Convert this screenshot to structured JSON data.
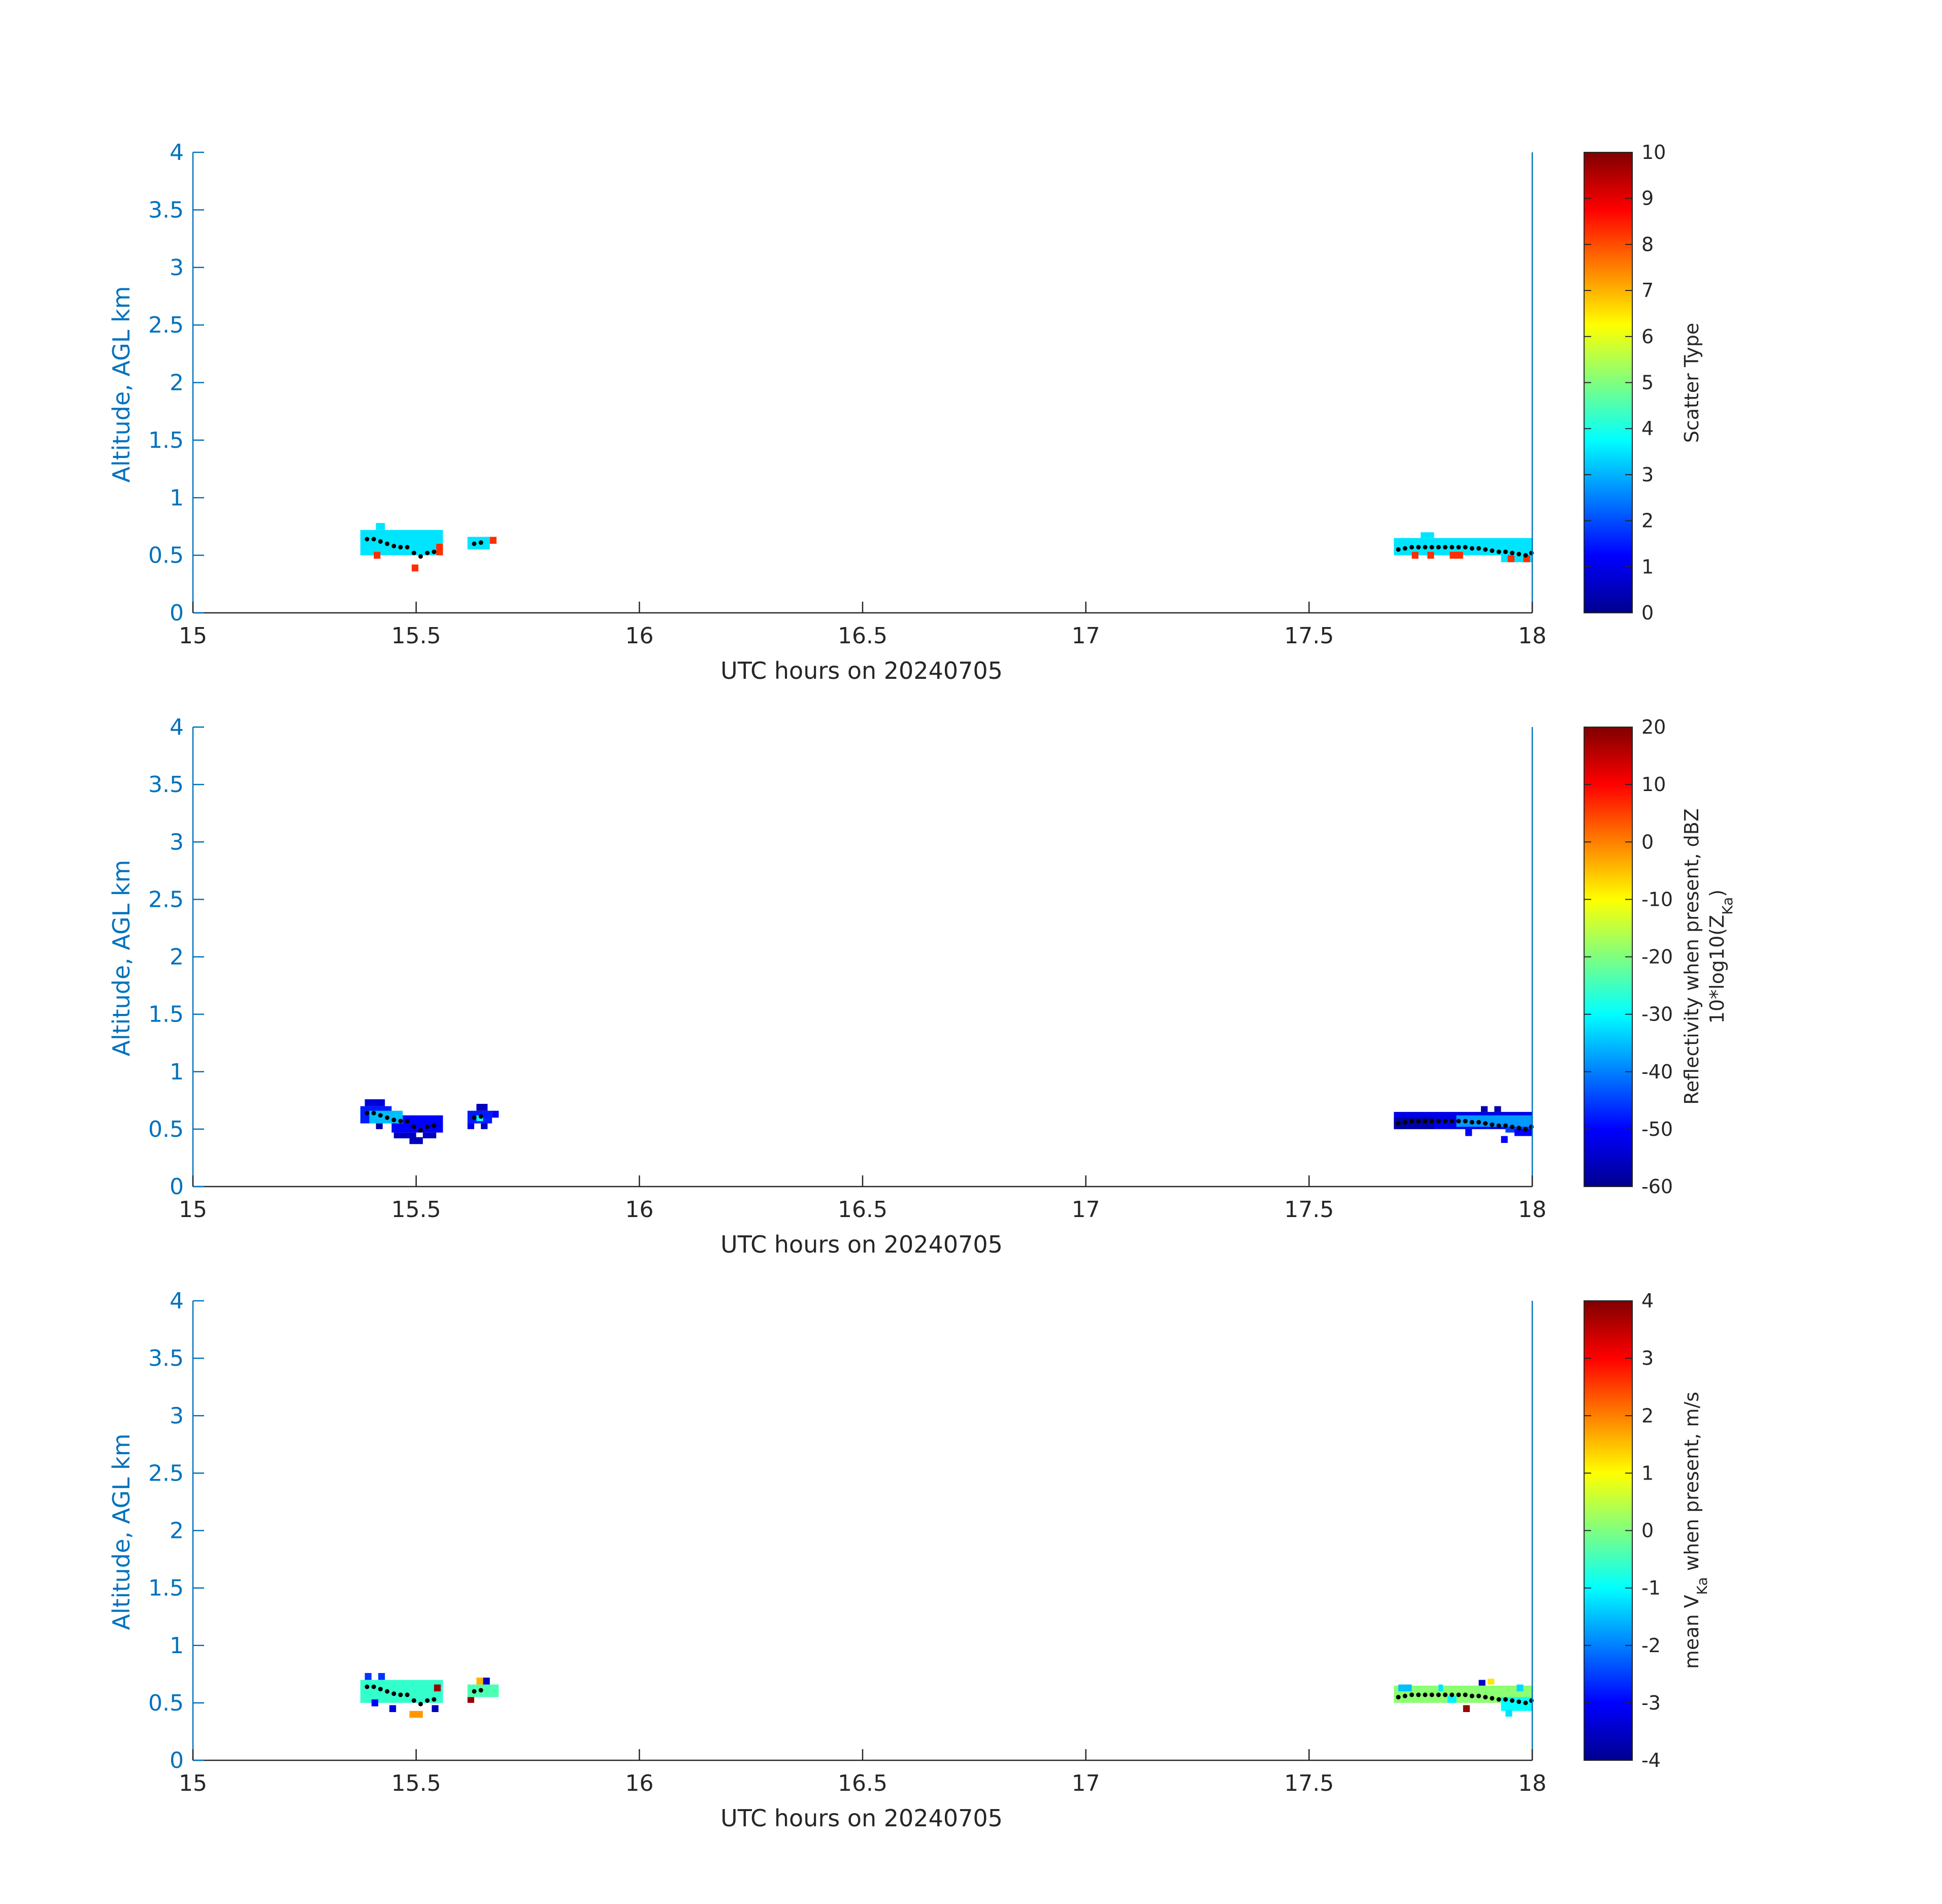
{
  "chart_data": [
    {
      "type": "heatmap",
      "xlabel": "UTC hours on 20240705",
      "ylabel": "Altitude, AGL km",
      "xlim": [
        15,
        18
      ],
      "ylim": [
        0,
        4
      ],
      "xticks": [
        "15",
        "15.5",
        "16",
        "16.5",
        "17",
        "17.5",
        "18"
      ],
      "yticks": [
        "0",
        "0.5",
        "1",
        "1.5",
        "2",
        "2.5",
        "3",
        "3.5",
        "4"
      ],
      "colorbar": {
        "label": "Scatter Type",
        "range": [
          0,
          10
        ],
        "ticks": [
          "0",
          "1",
          "2",
          "3",
          "4",
          "5",
          "6",
          "7",
          "8",
          "9",
          "10"
        ]
      },
      "cells": [
        {
          "x0": 15.375,
          "x1": 15.56,
          "y0": 0.5,
          "y1": 0.72,
          "value": 3.5
        },
        {
          "x0": 15.41,
          "x1": 15.43,
          "y0": 0.72,
          "y1": 0.78,
          "value": 3.5
        },
        {
          "x0": 15.615,
          "x1": 15.665,
          "y0": 0.55,
          "y1": 0.66,
          "value": 3.5
        },
        {
          "x0": 15.405,
          "x1": 15.42,
          "y0": 0.47,
          "y1": 0.53,
          "value": 8.3
        },
        {
          "x0": 15.49,
          "x1": 15.505,
          "y0": 0.36,
          "y1": 0.42,
          "value": 8.3
        },
        {
          "x0": 15.545,
          "x1": 15.56,
          "y0": 0.5,
          "y1": 0.6,
          "value": 8.3
        },
        {
          "x0": 15.665,
          "x1": 15.68,
          "y0": 0.6,
          "y1": 0.66,
          "value": 8.3
        },
        {
          "x0": 17.69,
          "x1": 18.0,
          "y0": 0.5,
          "y1": 0.65,
          "value": 3.5
        },
        {
          "x0": 17.75,
          "x1": 17.78,
          "y0": 0.65,
          "y1": 0.7,
          "value": 3.5
        },
        {
          "x0": 17.93,
          "x1": 18.0,
          "y0": 0.44,
          "y1": 0.5,
          "value": 3.5
        },
        {
          "x0": 17.73,
          "x1": 17.745,
          "y0": 0.47,
          "y1": 0.53,
          "value": 8.3
        },
        {
          "x0": 17.765,
          "x1": 17.78,
          "y0": 0.47,
          "y1": 0.53,
          "value": 8.3
        },
        {
          "x0": 17.815,
          "x1": 17.845,
          "y0": 0.47,
          "y1": 0.53,
          "value": 8.3
        },
        {
          "x0": 17.945,
          "x1": 17.96,
          "y0": 0.44,
          "y1": 0.5,
          "value": 8.3
        },
        {
          "x0": 17.98,
          "x1": 17.995,
          "y0": 0.44,
          "y1": 0.5,
          "value": 8.3
        }
      ],
      "dots": [
        {
          "x": 15.39,
          "y": 0.64
        },
        {
          "x": 15.405,
          "y": 0.64
        },
        {
          "x": 15.42,
          "y": 0.62
        },
        {
          "x": 15.435,
          "y": 0.6
        },
        {
          "x": 15.45,
          "y": 0.58
        },
        {
          "x": 15.465,
          "y": 0.57
        },
        {
          "x": 15.48,
          "y": 0.57
        },
        {
          "x": 15.495,
          "y": 0.52
        },
        {
          "x": 15.51,
          "y": 0.49
        },
        {
          "x": 15.525,
          "y": 0.52
        },
        {
          "x": 15.54,
          "y": 0.53
        },
        {
          "x": 15.63,
          "y": 0.6
        },
        {
          "x": 15.645,
          "y": 0.61
        },
        {
          "x": 17.7,
          "y": 0.55
        },
        {
          "x": 17.715,
          "y": 0.56
        },
        {
          "x": 17.73,
          "y": 0.57
        },
        {
          "x": 17.745,
          "y": 0.57
        },
        {
          "x": 17.76,
          "y": 0.57
        },
        {
          "x": 17.775,
          "y": 0.57
        },
        {
          "x": 17.79,
          "y": 0.57
        },
        {
          "x": 17.805,
          "y": 0.57
        },
        {
          "x": 17.82,
          "y": 0.57
        },
        {
          "x": 17.835,
          "y": 0.57
        },
        {
          "x": 17.85,
          "y": 0.57
        },
        {
          "x": 17.865,
          "y": 0.56
        },
        {
          "x": 17.88,
          "y": 0.56
        },
        {
          "x": 17.895,
          "y": 0.55
        },
        {
          "x": 17.91,
          "y": 0.54
        },
        {
          "x": 17.925,
          "y": 0.53
        },
        {
          "x": 17.94,
          "y": 0.53
        },
        {
          "x": 17.955,
          "y": 0.52
        },
        {
          "x": 17.97,
          "y": 0.51
        },
        {
          "x": 17.985,
          "y": 0.5
        },
        {
          "x": 17.998,
          "y": 0.52
        }
      ]
    },
    {
      "type": "heatmap",
      "xlabel": "UTC hours on 20240705",
      "ylabel": "Altitude, AGL km",
      "xlim": [
        15,
        18
      ],
      "ylim": [
        0,
        4
      ],
      "xticks": [
        "15",
        "15.5",
        "16",
        "16.5",
        "17",
        "17.5",
        "18"
      ],
      "yticks": [
        "0",
        "0.5",
        "1",
        "1.5",
        "2",
        "2.5",
        "3",
        "3.5",
        "4"
      ],
      "colorbar": {
        "label_line1": "Reflectivity when present, dBZ",
        "label_line2_prefix": "10*log10(Z",
        "label_line2_sub": "Ka",
        "label_line2_suffix": ")",
        "range": [
          -60,
          20
        ],
        "ticks": [
          "-60",
          "-50",
          "-40",
          "-30",
          "-20",
          "-10",
          "0",
          "10",
          "20"
        ]
      },
      "cells": [
        {
          "x0": 15.375,
          "x1": 15.445,
          "y0": 0.55,
          "y1": 0.7,
          "value": -48
        },
        {
          "x0": 15.385,
          "x1": 15.43,
          "y0": 0.7,
          "y1": 0.76,
          "value": -53
        },
        {
          "x0": 15.445,
          "x1": 15.56,
          "y0": 0.47,
          "y1": 0.62,
          "value": -50
        },
        {
          "x0": 15.45,
          "x1": 15.5,
          "y0": 0.42,
          "y1": 0.47,
          "value": -55
        },
        {
          "x0": 15.485,
          "x1": 15.515,
          "y0": 0.37,
          "y1": 0.43,
          "value": -55
        },
        {
          "x0": 15.515,
          "x1": 15.545,
          "y0": 0.42,
          "y1": 0.47,
          "value": -55
        },
        {
          "x0": 15.395,
          "x1": 15.47,
          "y0": 0.55,
          "y1": 0.66,
          "value": -35
        },
        {
          "x0": 15.41,
          "x1": 15.425,
          "y0": 0.5,
          "y1": 0.55,
          "value": -57
        },
        {
          "x0": 15.615,
          "x1": 15.67,
          "y0": 0.55,
          "y1": 0.66,
          "value": -48
        },
        {
          "x0": 15.635,
          "x1": 15.66,
          "y0": 0.66,
          "y1": 0.72,
          "value": -55
        },
        {
          "x0": 15.615,
          "x1": 15.63,
          "y0": 0.5,
          "y1": 0.55,
          "value": -52
        },
        {
          "x0": 15.645,
          "x1": 15.66,
          "y0": 0.5,
          "y1": 0.55,
          "value": -55
        },
        {
          "x0": 15.67,
          "x1": 15.685,
          "y0": 0.6,
          "y1": 0.66,
          "value": -50
        },
        {
          "x0": 15.635,
          "x1": 15.65,
          "y0": 0.57,
          "y1": 0.62,
          "value": -30
        },
        {
          "x0": 17.69,
          "x1": 18.0,
          "y0": 0.5,
          "y1": 0.65,
          "value": -52
        },
        {
          "x0": 17.69,
          "x1": 17.78,
          "y0": 0.5,
          "y1": 0.6,
          "value": -57
        },
        {
          "x0": 17.83,
          "x1": 18.0,
          "y0": 0.52,
          "y1": 0.62,
          "value": -38
        },
        {
          "x0": 17.94,
          "x1": 18.0,
          "y0": 0.47,
          "y1": 0.52,
          "value": -45
        },
        {
          "x0": 17.885,
          "x1": 17.9,
          "y0": 0.65,
          "y1": 0.7,
          "value": -57
        },
        {
          "x0": 17.915,
          "x1": 17.93,
          "y0": 0.65,
          "y1": 0.7,
          "value": -57
        },
        {
          "x0": 17.85,
          "x1": 17.865,
          "y0": 0.44,
          "y1": 0.5,
          "value": -50
        },
        {
          "x0": 17.93,
          "x1": 17.945,
          "y0": 0.38,
          "y1": 0.44,
          "value": -50
        },
        {
          "x0": 17.96,
          "x1": 18.0,
          "y0": 0.44,
          "y1": 0.5,
          "value": -50
        }
      ],
      "dots": [
        {
          "x": 15.39,
          "y": 0.64
        },
        {
          "x": 15.405,
          "y": 0.64
        },
        {
          "x": 15.42,
          "y": 0.62
        },
        {
          "x": 15.435,
          "y": 0.6
        },
        {
          "x": 15.45,
          "y": 0.58
        },
        {
          "x": 15.465,
          "y": 0.57
        },
        {
          "x": 15.48,
          "y": 0.57
        },
        {
          "x": 15.495,
          "y": 0.52
        },
        {
          "x": 15.51,
          "y": 0.49
        },
        {
          "x": 15.525,
          "y": 0.52
        },
        {
          "x": 15.54,
          "y": 0.53
        },
        {
          "x": 15.63,
          "y": 0.6
        },
        {
          "x": 15.645,
          "y": 0.61
        },
        {
          "x": 17.7,
          "y": 0.55
        },
        {
          "x": 17.715,
          "y": 0.56
        },
        {
          "x": 17.73,
          "y": 0.57
        },
        {
          "x": 17.745,
          "y": 0.57
        },
        {
          "x": 17.76,
          "y": 0.57
        },
        {
          "x": 17.775,
          "y": 0.57
        },
        {
          "x": 17.79,
          "y": 0.57
        },
        {
          "x": 17.805,
          "y": 0.57
        },
        {
          "x": 17.82,
          "y": 0.57
        },
        {
          "x": 17.835,
          "y": 0.57
        },
        {
          "x": 17.85,
          "y": 0.57
        },
        {
          "x": 17.865,
          "y": 0.56
        },
        {
          "x": 17.88,
          "y": 0.56
        },
        {
          "x": 17.895,
          "y": 0.55
        },
        {
          "x": 17.91,
          "y": 0.54
        },
        {
          "x": 17.925,
          "y": 0.53
        },
        {
          "x": 17.94,
          "y": 0.53
        },
        {
          "x": 17.955,
          "y": 0.52
        },
        {
          "x": 17.97,
          "y": 0.51
        },
        {
          "x": 17.985,
          "y": 0.5
        },
        {
          "x": 17.998,
          "y": 0.52
        }
      ]
    },
    {
      "type": "heatmap",
      "xlabel": "UTC hours on 20240705",
      "ylabel": "Altitude, AGL km",
      "xlim": [
        15,
        18
      ],
      "ylim": [
        0,
        4
      ],
      "xticks": [
        "15",
        "15.5",
        "16",
        "16.5",
        "17",
        "17.5",
        "18"
      ],
      "yticks": [
        "0",
        "0.5",
        "1",
        "1.5",
        "2",
        "2.5",
        "3",
        "3.5",
        "4"
      ],
      "colorbar": {
        "label_prefix": "mean V",
        "label_sub": "Ka",
        "label_suffix": " when present, m/s",
        "range": [
          -4,
          4
        ],
        "ticks": [
          "-4",
          "-3",
          "-2",
          "-1",
          "0",
          "1",
          "2",
          "3",
          "4"
        ]
      },
      "cells": [
        {
          "x0": 15.375,
          "x1": 15.56,
          "y0": 0.5,
          "y1": 0.7,
          "value": -0.6
        },
        {
          "x0": 15.385,
          "x1": 15.4,
          "y0": 0.7,
          "y1": 0.76,
          "value": -2.6
        },
        {
          "x0": 15.415,
          "x1": 15.43,
          "y0": 0.7,
          "y1": 0.76,
          "value": -2.6
        },
        {
          "x0": 15.4,
          "x1": 15.415,
          "y0": 0.47,
          "y1": 0.53,
          "value": -3.0
        },
        {
          "x0": 15.44,
          "x1": 15.455,
          "y0": 0.42,
          "y1": 0.48,
          "value": -3.2
        },
        {
          "x0": 15.485,
          "x1": 15.515,
          "y0": 0.37,
          "y1": 0.43,
          "value": 1.8
        },
        {
          "x0": 15.54,
          "x1": 15.555,
          "y0": 0.6,
          "y1": 0.66,
          "value": 3.8
        },
        {
          "x0": 15.535,
          "x1": 15.55,
          "y0": 0.42,
          "y1": 0.48,
          "value": -3.5
        },
        {
          "x0": 15.615,
          "x1": 15.685,
          "y0": 0.55,
          "y1": 0.66,
          "value": -0.4
        },
        {
          "x0": 15.615,
          "x1": 15.63,
          "y0": 0.5,
          "y1": 0.55,
          "value": 3.8
        },
        {
          "x0": 15.635,
          "x1": 15.65,
          "y0": 0.66,
          "y1": 0.72,
          "value": 1.6
        },
        {
          "x0": 15.65,
          "x1": 15.665,
          "y0": 0.66,
          "y1": 0.72,
          "value": -3.5
        },
        {
          "x0": 17.69,
          "x1": 18.0,
          "y0": 0.5,
          "y1": 0.65,
          "value": 0.1
        },
        {
          "x0": 17.7,
          "x1": 17.73,
          "y0": 0.6,
          "y1": 0.66,
          "value": -1.5
        },
        {
          "x0": 17.79,
          "x1": 17.8,
          "y0": 0.6,
          "y1": 0.66,
          "value": -1.2
        },
        {
          "x0": 17.81,
          "x1": 17.83,
          "y0": 0.5,
          "y1": 0.56,
          "value": -1.1
        },
        {
          "x0": 17.845,
          "x1": 17.86,
          "y0": 0.42,
          "y1": 0.48,
          "value": 3.8
        },
        {
          "x0": 17.88,
          "x1": 17.895,
          "y0": 0.65,
          "y1": 0.7,
          "value": -3.5
        },
        {
          "x0": 17.9,
          "x1": 17.915,
          "y0": 0.66,
          "y1": 0.71,
          "value": 1.2
        },
        {
          "x0": 17.93,
          "x1": 18.0,
          "y0": 0.43,
          "y1": 0.55,
          "value": -1.0
        },
        {
          "x0": 17.94,
          "x1": 17.955,
          "y0": 0.38,
          "y1": 0.44,
          "value": -1.2
        },
        {
          "x0": 17.965,
          "x1": 17.98,
          "y0": 0.6,
          "y1": 0.66,
          "value": -1.3
        }
      ],
      "dots": [
        {
          "x": 15.39,
          "y": 0.64
        },
        {
          "x": 15.405,
          "y": 0.64
        },
        {
          "x": 15.42,
          "y": 0.62
        },
        {
          "x": 15.435,
          "y": 0.6
        },
        {
          "x": 15.45,
          "y": 0.58
        },
        {
          "x": 15.465,
          "y": 0.57
        },
        {
          "x": 15.48,
          "y": 0.57
        },
        {
          "x": 15.495,
          "y": 0.52
        },
        {
          "x": 15.51,
          "y": 0.49
        },
        {
          "x": 15.525,
          "y": 0.52
        },
        {
          "x": 15.54,
          "y": 0.53
        },
        {
          "x": 15.63,
          "y": 0.6
        },
        {
          "x": 15.645,
          "y": 0.61
        },
        {
          "x": 17.7,
          "y": 0.55
        },
        {
          "x": 17.715,
          "y": 0.56
        },
        {
          "x": 17.73,
          "y": 0.57
        },
        {
          "x": 17.745,
          "y": 0.57
        },
        {
          "x": 17.76,
          "y": 0.57
        },
        {
          "x": 17.775,
          "y": 0.57
        },
        {
          "x": 17.79,
          "y": 0.57
        },
        {
          "x": 17.805,
          "y": 0.57
        },
        {
          "x": 17.82,
          "y": 0.57
        },
        {
          "x": 17.835,
          "y": 0.57
        },
        {
          "x": 17.85,
          "y": 0.57
        },
        {
          "x": 17.865,
          "y": 0.56
        },
        {
          "x": 17.88,
          "y": 0.56
        },
        {
          "x": 17.895,
          "y": 0.55
        },
        {
          "x": 17.91,
          "y": 0.54
        },
        {
          "x": 17.925,
          "y": 0.53
        },
        {
          "x": 17.94,
          "y": 0.53
        },
        {
          "x": 17.955,
          "y": 0.52
        },
        {
          "x": 17.97,
          "y": 0.51
        },
        {
          "x": 17.985,
          "y": 0.5
        },
        {
          "x": 17.998,
          "y": 0.52
        }
      ]
    }
  ]
}
